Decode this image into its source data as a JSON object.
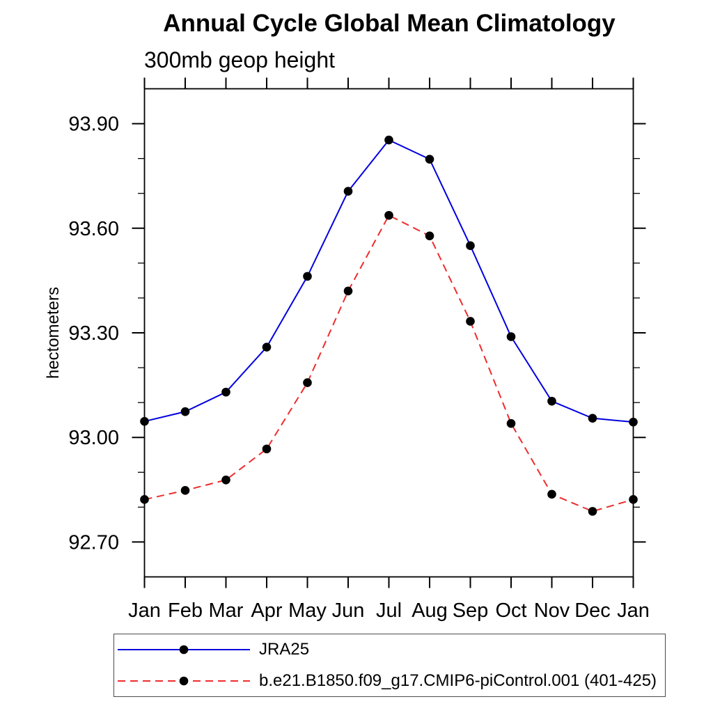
{
  "title": "Annual Cycle Global Mean Climatology",
  "subtitle": "300mb geop height",
  "ylabel": "hectometers",
  "chart_data": {
    "type": "line",
    "title": "Annual Cycle Global Mean Climatology",
    "subtitle": "300mb geop height",
    "xlabel": "",
    "ylabel": "hectometers",
    "x_categories": [
      "Jan",
      "Feb",
      "Mar",
      "Apr",
      "May",
      "Jun",
      "Jul",
      "Aug",
      "Sep",
      "Oct",
      "Nov",
      "Dec",
      "Jan"
    ],
    "y_axis": {
      "ylim": [
        92.6,
        94.0
      ],
      "major_ticks": [
        92.7,
        93.0,
        93.3,
        93.6,
        93.9
      ],
      "tick_labels": [
        "92.70",
        "93.00",
        "93.30",
        "93.60",
        "93.90"
      ],
      "minor_ticks": [
        92.8,
        92.9,
        93.1,
        93.2,
        93.4,
        93.5,
        93.7,
        93.8
      ]
    },
    "grid": false,
    "legend_position": "bottom-left-box",
    "marker_color": "#000000",
    "series": [
      {
        "name": "JRA25",
        "color": "#0000e0",
        "style": "solid",
        "marker": "filled-circle",
        "values": [
          93.046,
          93.074,
          93.13,
          93.259,
          93.462,
          93.706,
          93.853,
          93.798,
          93.55,
          93.289,
          93.104,
          93.055,
          93.044
        ]
      },
      {
        "name": "b.e21.B1850.f09_g17.CMIP6-piControl.001 (401-425)",
        "color": "#ee2c2c",
        "style": "dashed",
        "marker": "filled-circle",
        "values": [
          92.822,
          92.848,
          92.878,
          92.967,
          93.157,
          93.42,
          93.637,
          93.578,
          93.333,
          93.04,
          92.837,
          92.788,
          92.822
        ]
      }
    ]
  }
}
